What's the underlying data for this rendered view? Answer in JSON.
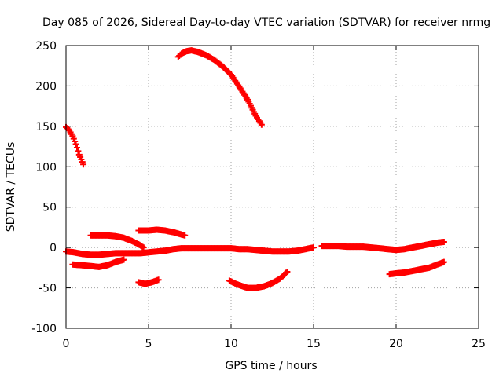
{
  "chart_data": {
    "type": "scatter",
    "title": "Day 085 of 2026, Sidereal Day-to-day VTEC variation (SDTVAR) for receiver nrmg",
    "xlabel": "GPS time / hours",
    "ylabel": "SDTVAR / TECUs",
    "xlim": [
      0,
      25
    ],
    "ylim": [
      -100,
      250
    ],
    "xticks": [
      0,
      5,
      10,
      15,
      20,
      25
    ],
    "yticks": [
      -100,
      -50,
      0,
      50,
      100,
      150,
      200,
      250
    ],
    "grid": true,
    "marker": "plus",
    "color": "#ff0000",
    "series": [
      {
        "name": "arc1",
        "points": [
          [
            0.0,
            149
          ],
          [
            0.2,
            145
          ],
          [
            0.4,
            138
          ],
          [
            0.6,
            128
          ],
          [
            0.8,
            115
          ],
          [
            1.05,
            103
          ]
        ]
      },
      {
        "name": "arc2",
        "points": [
          [
            6.8,
            236
          ],
          [
            7.0,
            240
          ],
          [
            7.3,
            243
          ],
          [
            7.6,
            244
          ],
          [
            8.0,
            242
          ],
          [
            8.5,
            238
          ],
          [
            9.0,
            232
          ],
          [
            9.5,
            224
          ],
          [
            10.0,
            214
          ],
          [
            10.5,
            199
          ],
          [
            11.0,
            183
          ],
          [
            11.5,
            163
          ],
          [
            11.85,
            152
          ]
        ]
      },
      {
        "name": "arc3",
        "points": [
          [
            0.0,
            -5
          ],
          [
            0.5,
            -6
          ],
          [
            1.0,
            -8
          ],
          [
            1.5,
            -9
          ],
          [
            2.0,
            -9
          ],
          [
            2.5,
            -8
          ],
          [
            3.0,
            -7
          ],
          [
            3.5,
            -7
          ],
          [
            4.0,
            -7
          ],
          [
            4.5,
            -7
          ],
          [
            5.0,
            -6
          ],
          [
            5.5,
            -5
          ],
          [
            6.0,
            -4
          ],
          [
            6.5,
            -2
          ],
          [
            7.0,
            -1
          ],
          [
            7.5,
            -1
          ],
          [
            8.0,
            -1
          ],
          [
            8.5,
            -1
          ],
          [
            9.0,
            -1
          ],
          [
            9.5,
            -1
          ],
          [
            10.0,
            -1
          ],
          [
            10.5,
            -2
          ],
          [
            11.0,
            -2
          ],
          [
            11.5,
            -3
          ],
          [
            12.0,
            -4
          ],
          [
            12.5,
            -5
          ],
          [
            13.0,
            -5
          ],
          [
            13.5,
            -5
          ],
          [
            14.0,
            -4
          ],
          [
            14.5,
            -2
          ],
          [
            15.0,
            0
          ]
        ]
      },
      {
        "name": "arc4",
        "points": [
          [
            1.5,
            15
          ],
          [
            2.0,
            15
          ],
          [
            2.5,
            15
          ],
          [
            3.0,
            14
          ],
          [
            3.5,
            12
          ],
          [
            4.0,
            8
          ],
          [
            4.4,
            4
          ],
          [
            4.7,
            0
          ]
        ]
      },
      {
        "name": "arc5",
        "points": [
          [
            4.4,
            21
          ],
          [
            5.0,
            21
          ],
          [
            5.5,
            22
          ],
          [
            6.0,
            21
          ],
          [
            6.5,
            19
          ],
          [
            7.0,
            16
          ],
          [
            7.2,
            15
          ]
        ]
      },
      {
        "name": "arc6",
        "points": [
          [
            0.4,
            -21
          ],
          [
            1.0,
            -22
          ],
          [
            1.5,
            -23
          ],
          [
            2.0,
            -24
          ],
          [
            2.5,
            -22
          ],
          [
            3.0,
            -18
          ],
          [
            3.5,
            -15
          ]
        ]
      },
      {
        "name": "arc7",
        "points": [
          [
            4.4,
            -43
          ],
          [
            4.8,
            -45
          ],
          [
            5.2,
            -43
          ],
          [
            5.6,
            -40
          ]
        ]
      },
      {
        "name": "arc8",
        "points": [
          [
            9.9,
            -41
          ],
          [
            10.3,
            -45
          ],
          [
            10.7,
            -48
          ],
          [
            11.0,
            -50
          ],
          [
            11.5,
            -50
          ],
          [
            12.0,
            -48
          ],
          [
            12.5,
            -44
          ],
          [
            13.0,
            -38
          ],
          [
            13.4,
            -30
          ]
        ]
      },
      {
        "name": "arc9",
        "points": [
          [
            15.5,
            2
          ],
          [
            16.0,
            2
          ],
          [
            16.5,
            2
          ],
          [
            17.0,
            1
          ],
          [
            17.5,
            1
          ],
          [
            18.0,
            1
          ],
          [
            18.5,
            0
          ],
          [
            19.0,
            -1
          ],
          [
            19.5,
            -2
          ],
          [
            20.0,
            -3
          ],
          [
            20.5,
            -2
          ],
          [
            21.0,
            0
          ],
          [
            21.5,
            2
          ],
          [
            22.0,
            4
          ],
          [
            22.5,
            6
          ],
          [
            22.9,
            7
          ]
        ]
      },
      {
        "name": "arc10",
        "points": [
          [
            19.6,
            -33
          ],
          [
            20.0,
            -32
          ],
          [
            20.5,
            -31
          ],
          [
            21.0,
            -29
          ],
          [
            21.5,
            -27
          ],
          [
            22.0,
            -25
          ],
          [
            22.5,
            -21
          ],
          [
            22.9,
            -18
          ]
        ]
      }
    ]
  }
}
